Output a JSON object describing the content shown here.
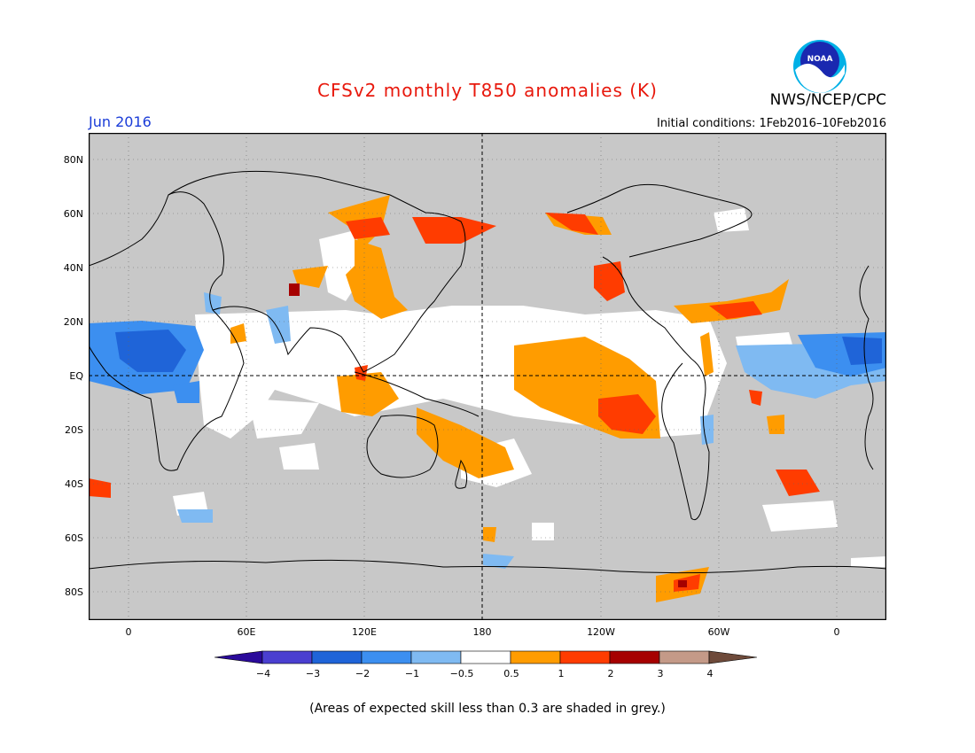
{
  "title": "CFSv2 monthly T850 anomalies (K)",
  "agency": "NWS/NCEP/CPC",
  "logo_text": "NOAA",
  "month_label": "Jun 2016",
  "initial_conditions": "Initial conditions: 1Feb2016–10Feb2016",
  "lat_labels": [
    "80N",
    "60N",
    "40N",
    "20N",
    "EQ",
    "20S",
    "40S",
    "60S",
    "80S"
  ],
  "lon_labels": [
    "0",
    "60E",
    "120E",
    "180",
    "120W",
    "60W",
    "0"
  ],
  "colorbar": {
    "labels": [
      "−4",
      "−3",
      "−2",
      "−1",
      "−0.5",
      "0.5",
      "1",
      "2",
      "3",
      "4"
    ],
    "colors": [
      "#2a0a9a",
      "#4a3fd0",
      "#1f64d8",
      "#3c8ff0",
      "#7fbaf2",
      "#ffffff",
      "#ff9c00",
      "#ff3c00",
      "#a60000",
      "#c49a88",
      "#6e4a3a"
    ]
  },
  "colors": {
    "grey": "#c8c8c8",
    "white": "#ffffff",
    "orange": "#ff9c00",
    "red_orange": "#ff3c00",
    "dark_red": "#a60000",
    "light_blue": "#7fbaf2",
    "mid_blue": "#3c8ff0",
    "blue": "#1f64d8"
  },
  "footnote": "(Areas of expected skill less than 0.3 are shaded in grey.)"
}
